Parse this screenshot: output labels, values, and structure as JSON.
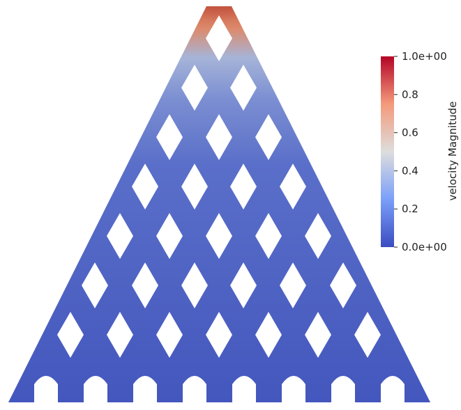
{
  "colorbar": {
    "title": "velocity Magnitude",
    "ticks": [
      {
        "value": 1.0,
        "label": "1.0e+00"
      },
      {
        "value": 0.8,
        "label": "0.8"
      },
      {
        "value": 0.6,
        "label": "0.6"
      },
      {
        "value": 0.4,
        "label": "0.4"
      },
      {
        "value": 0.2,
        "label": "0.2"
      },
      {
        "value": 0.0,
        "label": "0.0e+00"
      }
    ],
    "range": [
      0.0,
      1.0
    ],
    "colormap": "cool-to-warm",
    "colors": {
      "low": "#3b4cc0",
      "mid": "#dddddd",
      "high": "#b40426"
    }
  },
  "structure": {
    "shape": "triangular lattice",
    "cutouts": "diamond",
    "base_color": "#4a5ec4",
    "hot_color": "#c9573f"
  },
  "colors": {
    "background": "#ffffff",
    "text": "#222222"
  }
}
